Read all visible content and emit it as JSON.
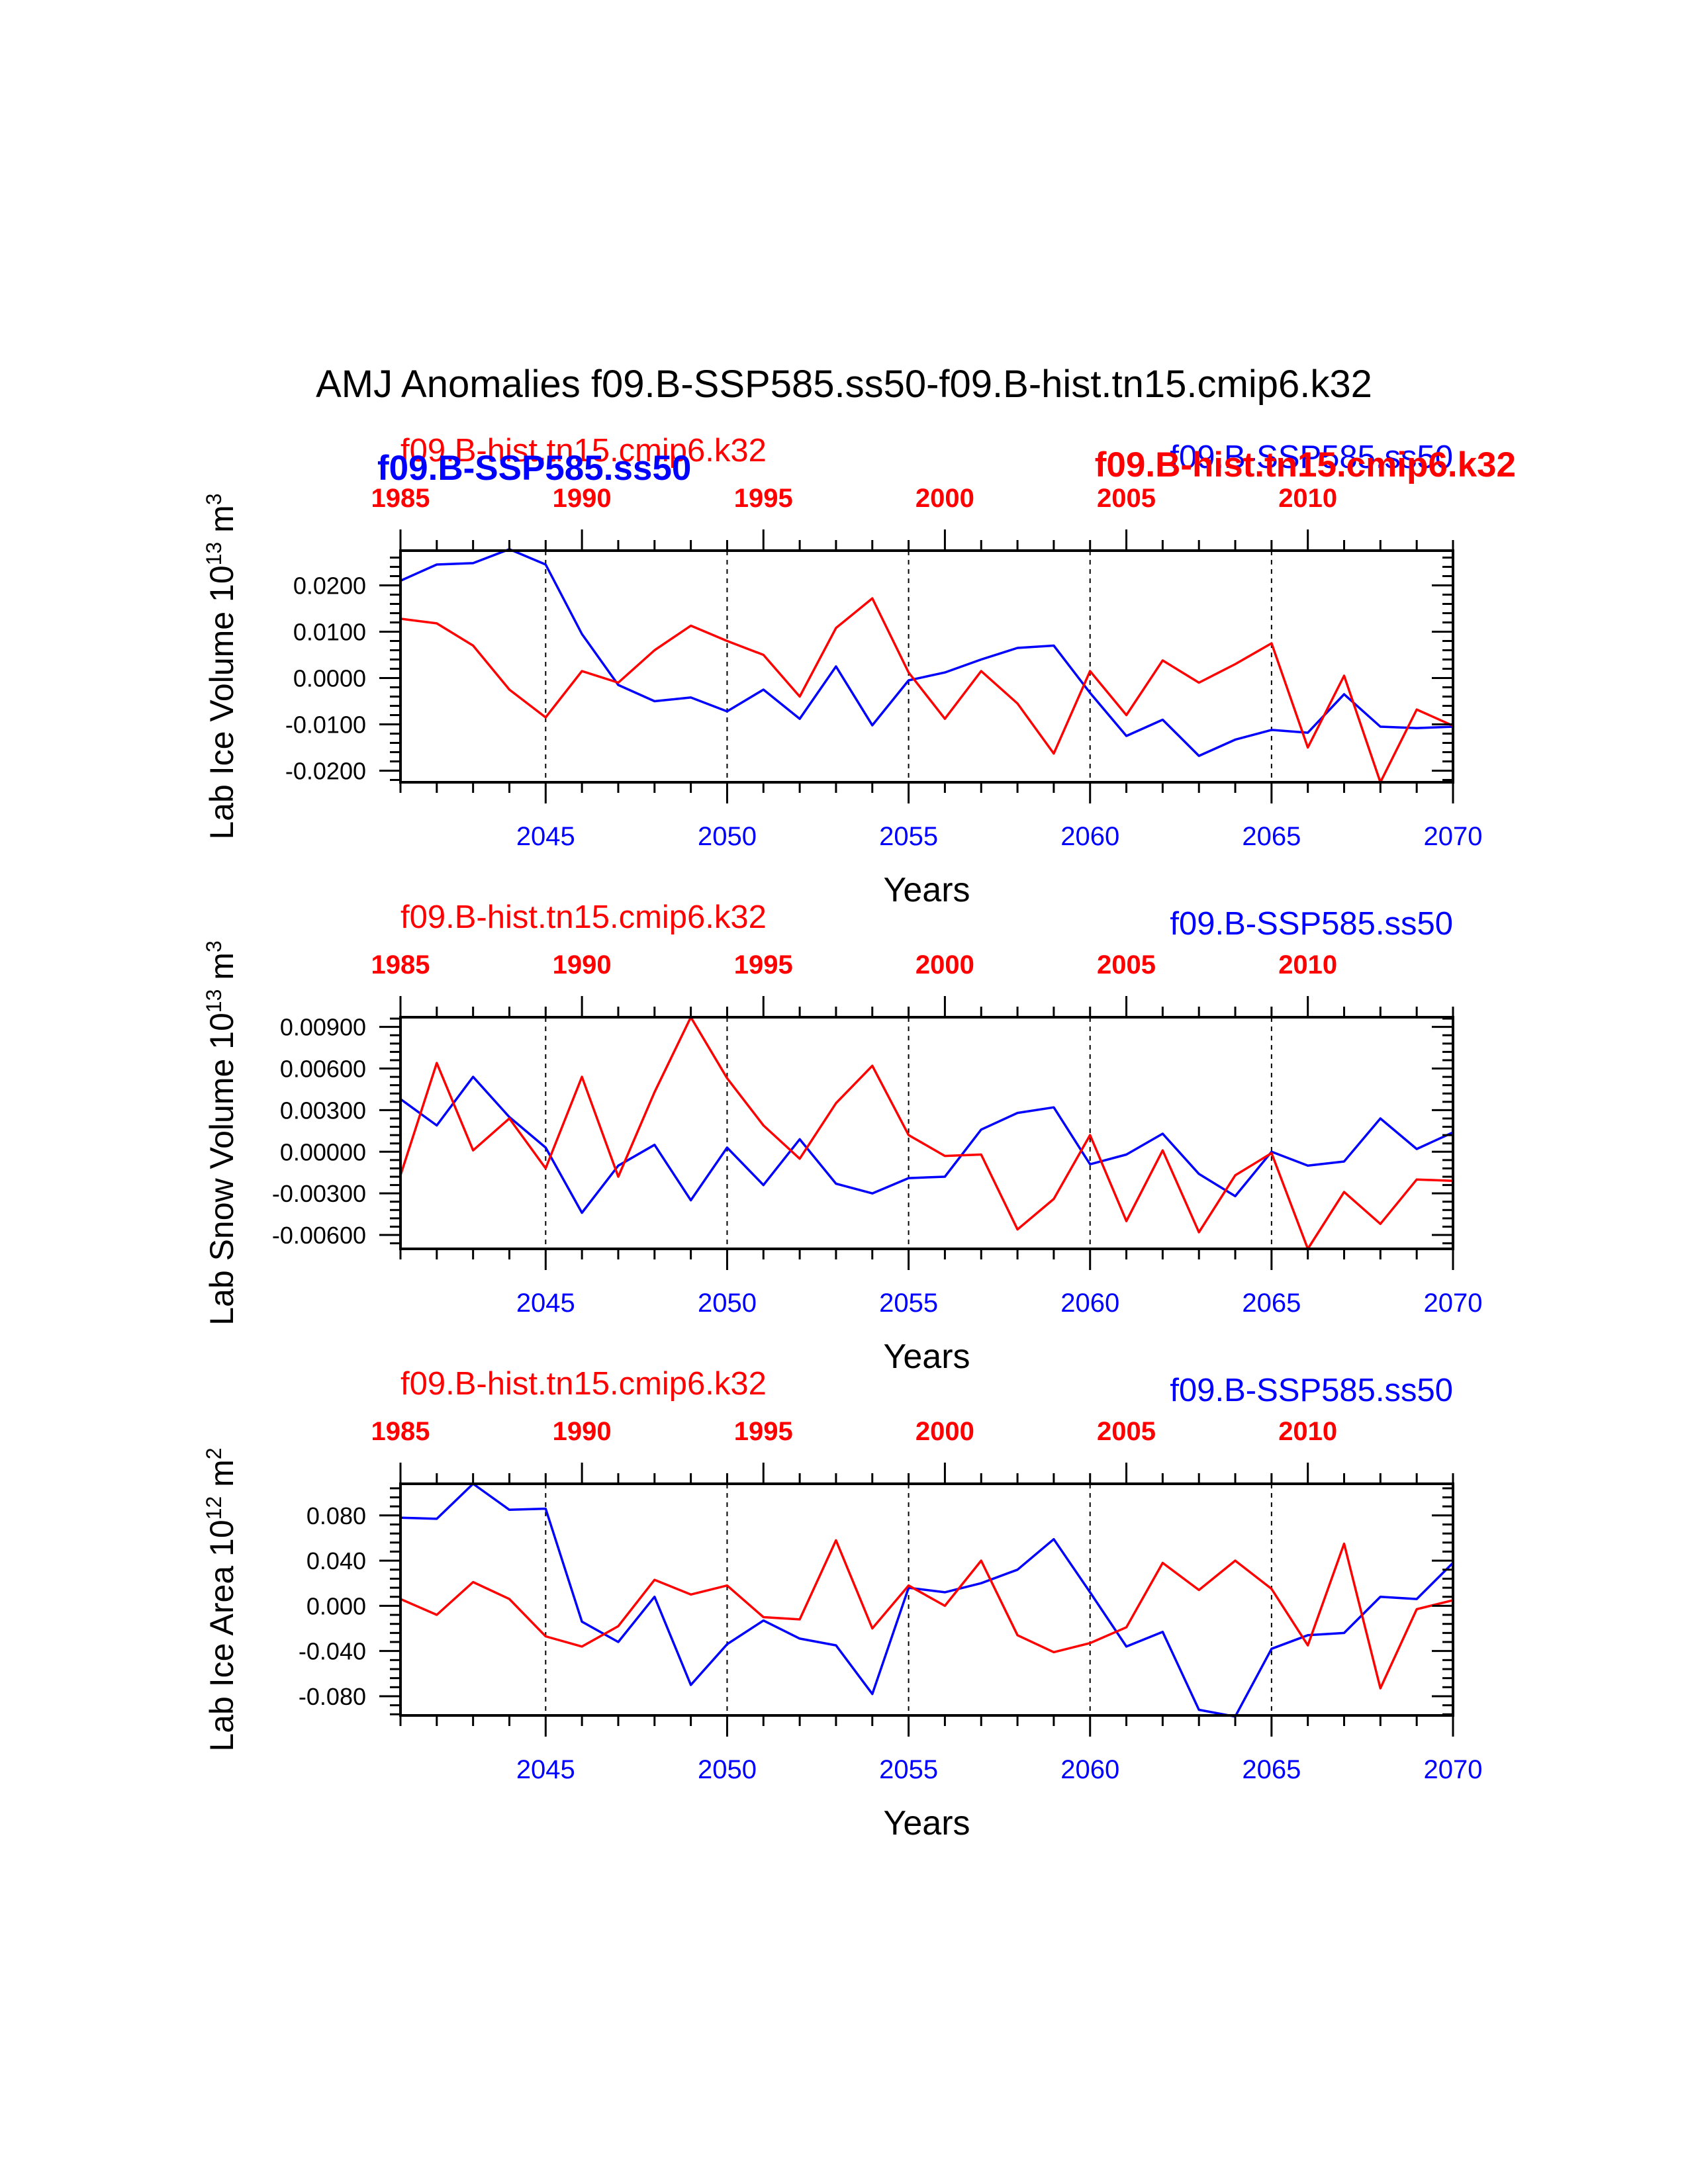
{
  "figure": {
    "title": "AMJ Anomalies f09.B-SSP585.ss50-f09.B-hist.tn15.cmip6.k32"
  },
  "colors": {
    "hist": "#ff0000",
    "ssp": "#0000ff",
    "axis": "#000000"
  },
  "chart_data": [
    {
      "type": "line",
      "panel": "lab-ice-volume",
      "ylabel": "Lab Ice Volume 10",
      "ylabel_exp": "13",
      "ylabel_unit": " m",
      "ylabel_unit_exp": "3",
      "xlabel": "Years",
      "top_left_label": "f09.B-hist.tn15.cmip6.k32",
      "top_right_label": "f09.B-SSP585.ss50",
      "overlay_left_label": "f09.B-SSP585.ss50",
      "overlay_right_label": "f09.B-hist.tn15.cmip6.k32",
      "ylim": [
        -0.0225,
        0.0275
      ],
      "yticks": [
        0.02,
        0.01,
        0.0,
        -0.01,
        -0.02
      ],
      "ytick_labels": [
        "0.0200",
        "0.0100",
        "0.0000",
        "-0.0100",
        "-0.0200"
      ],
      "grid": false,
      "series": [
        {
          "name": "f09.B-SSP585.ss50",
          "color": "#0000ff",
          "x": [
            2041,
            2042,
            2043,
            2044,
            2045,
            2046,
            2047,
            2048,
            2049,
            2050,
            2051,
            2052,
            2053,
            2054,
            2055,
            2056,
            2057,
            2058,
            2059,
            2060,
            2061,
            2062,
            2063,
            2064,
            2065,
            2066,
            2067,
            2068,
            2069,
            2070
          ],
          "values": [
            0.021,
            0.0245,
            0.0248,
            0.0278,
            0.0245,
            0.0095,
            -0.0015,
            -0.005,
            -0.0042,
            -0.0072,
            -0.0025,
            -0.0088,
            0.0025,
            -0.0102,
            -0.0005,
            0.0012,
            0.004,
            0.0065,
            0.007,
            -0.0032,
            -0.0125,
            -0.009,
            -0.0168,
            -0.0133,
            -0.0112,
            -0.0118,
            -0.0035,
            -0.0105,
            -0.0108,
            -0.0105
          ]
        },
        {
          "name": "f09.B-hist.tn15.cmip6.k32",
          "color": "#ff0000",
          "x": [
            1985,
            1986,
            1987,
            1988,
            1989,
            1990,
            1991,
            1992,
            1993,
            1994,
            1995,
            1996,
            1997,
            1998,
            1999,
            2000,
            2001,
            2002,
            2003,
            2004,
            2005,
            2006,
            2007,
            2008,
            2009,
            2010,
            2011,
            2012,
            2013,
            2014
          ],
          "values": [
            0.0128,
            0.0118,
            0.007,
            -0.0025,
            -0.0085,
            0.0015,
            -0.001,
            0.006,
            0.0113,
            0.008,
            0.005,
            -0.004,
            0.0108,
            0.0172,
            0.0012,
            -0.0088,
            0.0015,
            -0.0055,
            -0.0163,
            0.0015,
            -0.008,
            0.0038,
            -0.001,
            0.003,
            0.0075,
            -0.015,
            0.0005,
            -0.0225,
            -0.0068,
            -0.0103
          ]
        }
      ],
      "top_axis": {
        "label_values": [
          1985,
          1990,
          1995,
          2000,
          2005,
          2010
        ]
      },
      "bottom_axis": {
        "label_values": [
          2045,
          2050,
          2055,
          2060,
          2065,
          2070
        ]
      }
    },
    {
      "type": "line",
      "panel": "lab-snow-volume",
      "ylabel": "Lab Snow Volume 10",
      "ylabel_exp": "13",
      "ylabel_unit": " m",
      "ylabel_unit_exp": "3",
      "xlabel": "Years",
      "top_left_label": "f09.B-hist.tn15.cmip6.k32",
      "top_right_label": "f09.B-SSP585.ss50",
      "ylim": [
        -0.007,
        0.0097
      ],
      "yticks": [
        0.009,
        0.006,
        0.003,
        0.0,
        -0.003,
        -0.006
      ],
      "ytick_labels": [
        "0.00900",
        "0.00600",
        "0.00300",
        "0.00000",
        "-0.00300",
        "-0.00600"
      ],
      "grid": false,
      "series": [
        {
          "name": "f09.B-SSP585.ss50",
          "color": "#0000ff",
          "x": [
            2041,
            2042,
            2043,
            2044,
            2045,
            2046,
            2047,
            2048,
            2049,
            2050,
            2051,
            2052,
            2053,
            2054,
            2055,
            2056,
            2057,
            2058,
            2059,
            2060,
            2061,
            2062,
            2063,
            2064,
            2065,
            2066,
            2067,
            2068,
            2069,
            2070
          ],
          "values": [
            0.0038,
            0.0019,
            0.0054,
            0.0025,
            0.0003,
            -0.0044,
            -0.001,
            0.0005,
            -0.0035,
            0.0003,
            -0.0024,
            0.0009,
            -0.0023,
            -0.003,
            -0.0019,
            -0.0018,
            0.0016,
            0.0028,
            0.0032,
            -0.0009,
            -0.0002,
            0.0013,
            -0.0016,
            -0.0032,
            0.0,
            -0.001,
            -0.0007,
            0.0024,
            0.0002,
            0.0014
          ]
        },
        {
          "name": "f09.B-hist.tn15.cmip6.k32",
          "color": "#ff0000",
          "x": [
            1985,
            1986,
            1987,
            1988,
            1989,
            1990,
            1991,
            1992,
            1993,
            1994,
            1995,
            1996,
            1997,
            1998,
            1999,
            2000,
            2001,
            2002,
            2003,
            2004,
            2005,
            2006,
            2007,
            2008,
            2009,
            2010,
            2011,
            2012,
            2013,
            2014
          ],
          "values": [
            -0.0017,
            0.0064,
            0.0001,
            0.0024,
            -0.0012,
            0.0054,
            -0.0018,
            0.0043,
            0.0097,
            0.0053,
            0.0019,
            -0.0005,
            0.0035,
            0.0062,
            0.0012,
            -0.0003,
            -0.0002,
            -0.0056,
            -0.0034,
            0.0012,
            -0.005,
            0.0001,
            -0.0058,
            -0.0017,
            -0.0001,
            -0.007,
            -0.0029,
            -0.0052,
            -0.002,
            -0.0021
          ]
        }
      ],
      "top_axis": {
        "label_values": [
          1985,
          1990,
          1995,
          2000,
          2005,
          2010
        ]
      },
      "bottom_axis": {
        "label_values": [
          2045,
          2050,
          2055,
          2060,
          2065,
          2070
        ]
      }
    },
    {
      "type": "line",
      "panel": "lab-ice-area",
      "ylabel": "Lab Ice Area 10",
      "ylabel_exp": "12",
      "ylabel_unit": " m",
      "ylabel_unit_exp": "2",
      "xlabel": "Years",
      "top_left_label": "f09.B-hist.tn15.cmip6.k32",
      "top_right_label": "f09.B-SSP585.ss50",
      "ylim": [
        -0.097,
        0.108
      ],
      "yticks": [
        0.08,
        0.04,
        0.0,
        -0.04,
        -0.08
      ],
      "ytick_labels": [
        "0.080",
        "0.040",
        "0.000",
        "-0.040",
        "-0.080"
      ],
      "grid": false,
      "series": [
        {
          "name": "f09.B-SSP585.ss50",
          "color": "#0000ff",
          "x": [
            2041,
            2042,
            2043,
            2044,
            2045,
            2046,
            2047,
            2048,
            2049,
            2050,
            2051,
            2052,
            2053,
            2054,
            2055,
            2056,
            2057,
            2058,
            2059,
            2060,
            2061,
            2062,
            2063,
            2064,
            2065,
            2066,
            2067,
            2068,
            2069,
            2070
          ],
          "values": [
            0.078,
            0.077,
            0.108,
            0.085,
            0.086,
            -0.014,
            -0.032,
            0.008,
            -0.07,
            -0.034,
            -0.013,
            -0.029,
            -0.035,
            -0.078,
            0.016,
            0.012,
            0.02,
            0.032,
            0.059,
            0.012,
            -0.036,
            -0.023,
            -0.092,
            -0.098,
            -0.038,
            -0.026,
            -0.024,
            0.008,
            0.006,
            0.038
          ]
        },
        {
          "name": "f09.B-hist.tn15.cmip6.k32",
          "color": "#ff0000",
          "x": [
            1985,
            1986,
            1987,
            1988,
            1989,
            1990,
            1991,
            1992,
            1993,
            1994,
            1995,
            1996,
            1997,
            1998,
            1999,
            2000,
            2001,
            2002,
            2003,
            2004,
            2005,
            2006,
            2007,
            2008,
            2009,
            2010,
            2011,
            2012,
            2013,
            2014
          ],
          "values": [
            0.006,
            -0.008,
            0.021,
            0.006,
            -0.027,
            -0.036,
            -0.018,
            0.023,
            0.01,
            0.018,
            -0.01,
            -0.012,
            0.058,
            -0.02,
            0.018,
            0.0,
            0.04,
            -0.026,
            -0.041,
            -0.033,
            -0.019,
            0.038,
            0.014,
            0.04,
            0.015,
            -0.035,
            0.055,
            -0.073,
            -0.003,
            0.005
          ]
        }
      ],
      "top_axis": {
        "label_values": [
          1985,
          1990,
          1995,
          2000,
          2005,
          2010
        ]
      },
      "bottom_axis": {
        "label_values": [
          2045,
          2050,
          2055,
          2060,
          2065,
          2070
        ]
      }
    }
  ]
}
